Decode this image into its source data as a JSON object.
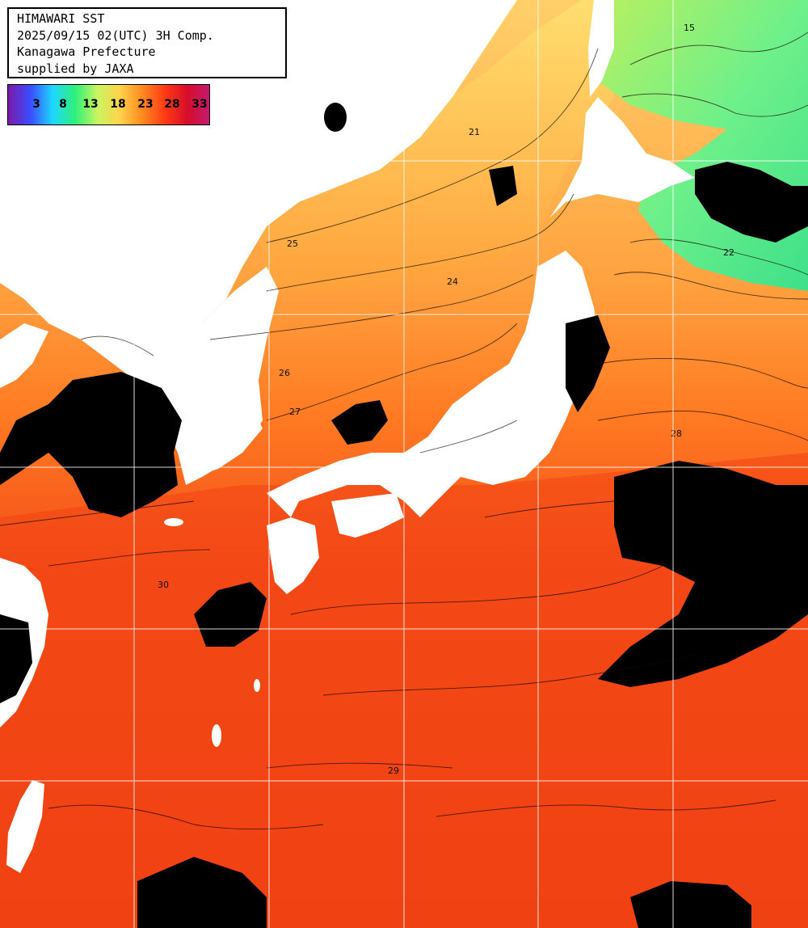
{
  "title": {
    "line1": "HIMAWARI SST",
    "line2": "2025/09/15 02(UTC) 3H Comp.",
    "line3": "Kanagawa Prefecture",
    "line4": "supplied by JAXA"
  },
  "legend": {
    "ticks": [
      "3",
      "8",
      "13",
      "18",
      "23",
      "28",
      "33"
    ],
    "colors": [
      "#7a1aa8",
      "#3a4cff",
      "#1ed8ff",
      "#2ef07a",
      "#c8f560",
      "#ffd24a",
      "#ff8a1e",
      "#ff3b14",
      "#d80d2a",
      "#c21a6e"
    ]
  },
  "colors": {
    "land": "#ffffff",
    "cloud": "#000000",
    "grid": "#ffffff",
    "contour": "#1a0a00",
    "sea_cold": "#5ee07a",
    "sea_cool": "#c8e85a",
    "sea_mild": "#ffb84a",
    "sea_warm": "#ff6a1a",
    "sea_hot": "#f03a0e"
  },
  "contour_labels": [
    "15",
    "21",
    "22",
    "24",
    "25",
    "26",
    "27",
    "28",
    "29",
    "30"
  ]
}
